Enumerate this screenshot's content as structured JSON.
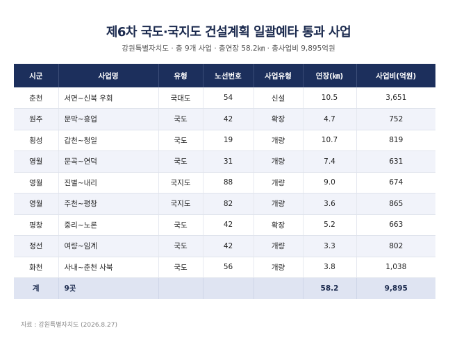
{
  "title": "제6차 국도·국지도 건설계획 일괄예타 통과 사업",
  "subtitle": "강원특별자치도 · 총 9개 사업 · 총연장 58.2㎞ · 총사업비 9,895억원",
  "table": {
    "headers": [
      "시군",
      "사업명",
      "유형",
      "노선번호",
      "사업유형",
      "연장(㎞)",
      "사업비(억원)"
    ],
    "rows": [
      [
        "춘천",
        "서면~신북 우회",
        "국대도",
        "54",
        "신설",
        "10.5",
        "3,651"
      ],
      [
        "원주",
        "문막~흥업",
        "국도",
        "42",
        "확장",
        "4.7",
        "752"
      ],
      [
        "횡성",
        "갑천~청일",
        "국도",
        "19",
        "개량",
        "10.7",
        "819"
      ],
      [
        "영월",
        "문곡~연덕",
        "국도",
        "31",
        "개량",
        "7.4",
        "631"
      ],
      [
        "영월",
        "진별~내리",
        "국지도",
        "88",
        "개량",
        "9.0",
        "674"
      ],
      [
        "영월",
        "주천~평창",
        "국지도",
        "82",
        "개량",
        "3.6",
        "865"
      ],
      [
        "평창",
        "중리~노론",
        "국도",
        "42",
        "확장",
        "5.2",
        "663"
      ],
      [
        "정선",
        "여량~임계",
        "국도",
        "42",
        "개량",
        "3.3",
        "802"
      ],
      [
        "화천",
        "사내~춘천 사북",
        "국도",
        "56",
        "개량",
        "3.8",
        "1,038"
      ]
    ],
    "total": [
      "계",
      "9곳",
      "",
      "",
      "",
      "58.2",
      "9,895"
    ]
  },
  "source": "자료 : 강원특별자치도 (2026.8.27)"
}
